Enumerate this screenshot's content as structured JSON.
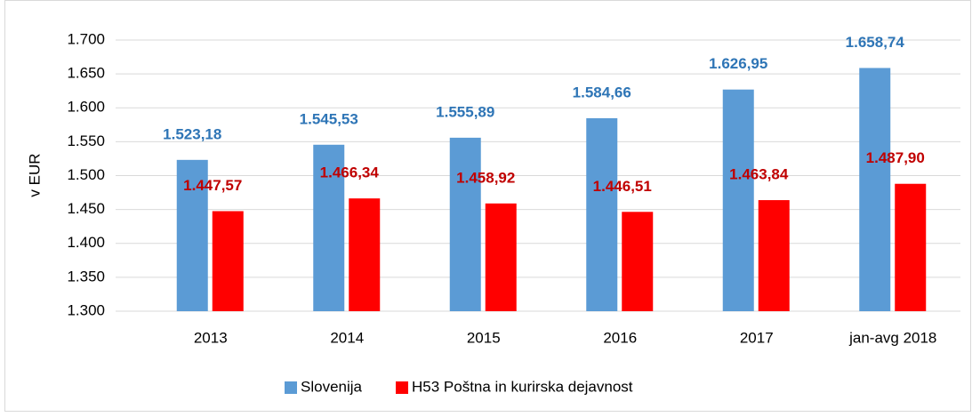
{
  "chart_data": {
    "type": "bar",
    "y_axis_label": "v EUR",
    "categories": [
      "2013",
      "2014",
      "2015",
      "2016",
      "2017",
      "jan-avg 2018"
    ],
    "series": [
      {
        "name": "Slovenija",
        "color": "#5b9bd5",
        "label_color": "#2e75b6",
        "values": [
          1523.18,
          1545.53,
          1555.89,
          1584.66,
          1626.95,
          1658.74
        ],
        "value_labels": [
          "1.523,18",
          "1.545,53",
          "1.555,89",
          "1.584,66",
          "1.626,95",
          "1.658,74"
        ]
      },
      {
        "name": "H53 Poštna in kurirska dejavnost",
        "color": "#ff0000",
        "label_color": "#c00000",
        "values": [
          1447.57,
          1466.34,
          1458.92,
          1446.51,
          1463.84,
          1487.9
        ],
        "value_labels": [
          "1.447,57",
          "1.466,34",
          "1.458,92",
          "1.446,51",
          "1.463,84",
          "1.487,90"
        ]
      }
    ],
    "ylim": [
      1300,
      1700
    ],
    "yticks": [
      {
        "value": 1300,
        "label": "1.300"
      },
      {
        "value": 1350,
        "label": "1.350"
      },
      {
        "value": 1400,
        "label": "1.400"
      },
      {
        "value": 1450,
        "label": "1.450"
      },
      {
        "value": 1500,
        "label": "1.500"
      },
      {
        "value": 1550,
        "label": "1.550"
      },
      {
        "value": 1600,
        "label": "1.600"
      },
      {
        "value": 1650,
        "label": "1.650"
      },
      {
        "value": 1700,
        "label": "1.700"
      }
    ],
    "grid": true,
    "legend": "bottom"
  }
}
